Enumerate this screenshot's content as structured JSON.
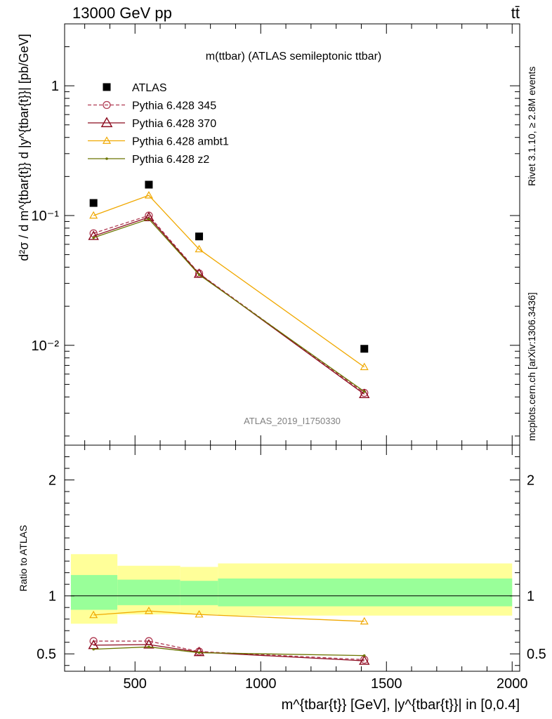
{
  "header": {
    "left": "13000 GeV pp",
    "right": "tt̄"
  },
  "side_labels": {
    "rivet": "Rivet 3.1.10, ≥ 2.8M events",
    "mcplots": "mcplots.cern.ch [arXiv:1306.3436]"
  },
  "chart_data": [
    {
      "type": "line",
      "title": "m(ttbar) (ATLAS semileptonic ttbar)",
      "watermark": "ATLAS_2019_I1750330",
      "ylabel": "d²σ / d m^{tbar{t}} d |y^{tbar{t}}| [pb/GeV]",
      "yscale": "log",
      "ylim": [
        0.0017,
        3.0
      ],
      "xlim": [
        220,
        2030
      ],
      "x_ticks": [
        500,
        1000,
        1500,
        2000
      ],
      "y_tick_labels": [
        "10⁻²",
        "10⁻¹",
        "1"
      ],
      "legend_position": "top-left",
      "series": [
        {
          "name": "ATLAS",
          "color": "#000000",
          "marker": "square",
          "x": [
            335,
            555,
            755,
            1412
          ],
          "y": [
            0.125,
            0.173,
            0.069,
            0.0094
          ]
        },
        {
          "name": "Pythia 6.428 345",
          "color": "#b03a52",
          "marker": "circle-open",
          "dashed": true,
          "x": [
            335,
            555,
            755,
            1412
          ],
          "y": [
            0.073,
            0.1,
            0.0358,
            0.0043
          ]
        },
        {
          "name": "Pythia 6.428 370",
          "color": "#8b0a1e",
          "marker": "triangle-open",
          "x": [
            335,
            555,
            755,
            1412
          ],
          "y": [
            0.0695,
            0.097,
            0.0355,
            0.0042
          ]
        },
        {
          "name": "Pythia 6.428 ambt1",
          "color": "#f0a800",
          "marker": "triangle-open-small",
          "x": [
            335,
            555,
            755,
            1412
          ],
          "y": [
            0.1,
            0.143,
            0.055,
            0.0068
          ]
        },
        {
          "name": "Pythia 6.428 z2",
          "color": "#6b7500",
          "marker": "dot",
          "x": [
            335,
            555,
            755,
            1412
          ],
          "y": [
            0.0675,
            0.094,
            0.035,
            0.0044
          ]
        }
      ]
    },
    {
      "type": "line",
      "ylabel": "Ratio to ATLAS",
      "xlabel": "m^{tbar{t}} [GeV], |y^{tbar{t}}| in [0,0.4]",
      "ylim": [
        0.35,
        2.3
      ],
      "xlim": [
        220,
        2030
      ],
      "x_ticks": [
        500,
        1000,
        1500,
        2000
      ],
      "y_ticks": [
        0.5,
        1,
        2
      ],
      "bands": {
        "edges": [
          245,
          430,
          680,
          830,
          2000
        ],
        "outer_color": "#ffff99",
        "inner_color": "#99ff99",
        "outer": [
          [
            0.76,
            1.36
          ],
          [
            0.84,
            1.26
          ],
          [
            0.84,
            1.25
          ],
          [
            0.83,
            1.28
          ]
        ],
        "inner": [
          [
            0.88,
            1.18
          ],
          [
            0.92,
            1.14
          ],
          [
            0.92,
            1.13
          ],
          [
            0.91,
            1.15
          ]
        ]
      },
      "series": [
        {
          "name": "Pythia 6.428 345",
          "color": "#b03a52",
          "marker": "circle-open",
          "dashed": true,
          "x": [
            335,
            555,
            755,
            1412
          ],
          "y": [
            0.61,
            0.61,
            0.52,
            0.45
          ]
        },
        {
          "name": "Pythia 6.428 370",
          "color": "#8b0a1e",
          "marker": "triangle-open",
          "x": [
            335,
            555,
            755,
            1412
          ],
          "y": [
            0.575,
            0.58,
            0.515,
            0.44
          ]
        },
        {
          "name": "Pythia 6.428 ambt1",
          "color": "#f0a800",
          "marker": "triangle-open-small",
          "x": [
            335,
            555,
            755,
            1412
          ],
          "y": [
            0.835,
            0.87,
            0.84,
            0.78
          ]
        },
        {
          "name": "Pythia 6.428 z2",
          "color": "#6b7500",
          "marker": "dot",
          "x": [
            335,
            555,
            755,
            1412
          ],
          "y": [
            0.54,
            0.56,
            0.51,
            0.485
          ]
        }
      ]
    }
  ]
}
